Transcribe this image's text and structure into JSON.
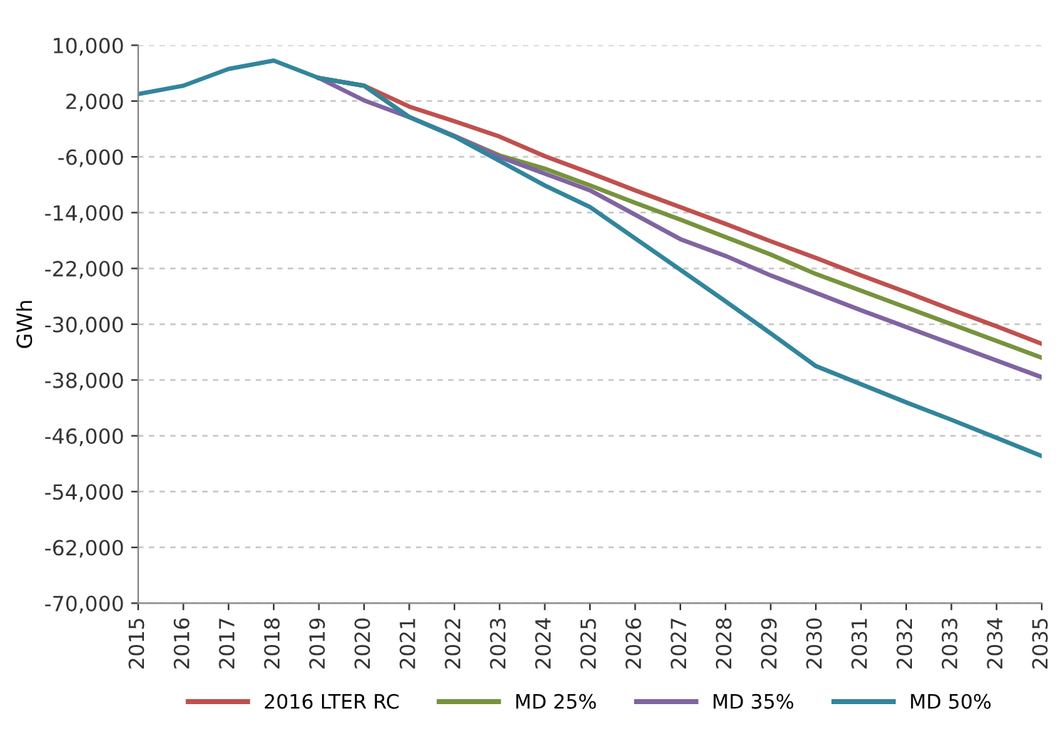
{
  "chart_data": {
    "type": "line",
    "ylabel": "GWh",
    "x": [
      2015,
      2016,
      2017,
      2018,
      2019,
      2020,
      2021,
      2022,
      2023,
      2024,
      2025,
      2026,
      2027,
      2028,
      2029,
      2030,
      2031,
      2032,
      2033,
      2034,
      2035
    ],
    "series": [
      {
        "name": "2016 LTER RC",
        "color": "#c0504d",
        "values": [
          null,
          null,
          null,
          null,
          5300,
          4200,
          1200,
          -900,
          -3100,
          -5900,
          -8300,
          -10800,
          -13200,
          -15600,
          -18100,
          -20500,
          -23000,
          -25400,
          -27900,
          -30300,
          -32800
        ]
      },
      {
        "name": "MD 25%",
        "color": "#77933c",
        "values": [
          null,
          null,
          null,
          null,
          5300,
          4200,
          -300,
          -3000,
          -5800,
          -7700,
          -10100,
          -12600,
          -15000,
          -17500,
          -20000,
          -22800,
          -25200,
          -27600,
          -30000,
          -32400,
          -34800
        ]
      },
      {
        "name": "MD 35%",
        "color": "#8064a2",
        "values": [
          null,
          null,
          null,
          null,
          5300,
          2100,
          -300,
          -3000,
          -6000,
          -8400,
          -10800,
          -14300,
          -17800,
          -20200,
          -23000,
          -25500,
          -28000,
          -30400,
          -32800,
          -35200,
          -37600
        ]
      },
      {
        "name": "MD 50%",
        "color": "#31859c",
        "values": [
          3000,
          4200,
          6600,
          7800,
          5300,
          4200,
          -300,
          -3100,
          -6600,
          -10100,
          -13200,
          -17700,
          -22200,
          -26700,
          -31300,
          -36000,
          -38600,
          -41200,
          -43700,
          -46300,
          -48900
        ]
      }
    ],
    "xlim": [
      2015,
      2035
    ],
    "xticks": [
      2015,
      2016,
      2017,
      2018,
      2019,
      2020,
      2021,
      2022,
      2023,
      2024,
      2025,
      2026,
      2027,
      2028,
      2029,
      2030,
      2031,
      2032,
      2033,
      2034,
      2035
    ],
    "ylim": [
      -70000,
      10000
    ],
    "yticks": [
      {
        "value": 10000,
        "label": "10,000"
      },
      {
        "value": 2000,
        "label": "2,000"
      },
      {
        "value": -6000,
        "label": "-6,000"
      },
      {
        "value": -14000,
        "label": "-14,000"
      },
      {
        "value": -22000,
        "label": "-22,000"
      },
      {
        "value": -30000,
        "label": "-30,000"
      },
      {
        "value": -38000,
        "label": "-38,000"
      },
      {
        "value": -46000,
        "label": "-46,000"
      },
      {
        "value": -54000,
        "label": "-54,000"
      },
      {
        "value": -62000,
        "label": "-62,000"
      },
      {
        "value": -70000,
        "label": "-70,000"
      }
    ],
    "grid": "y",
    "legend": "bottom",
    "marker": "none",
    "line_style": "solid"
  }
}
